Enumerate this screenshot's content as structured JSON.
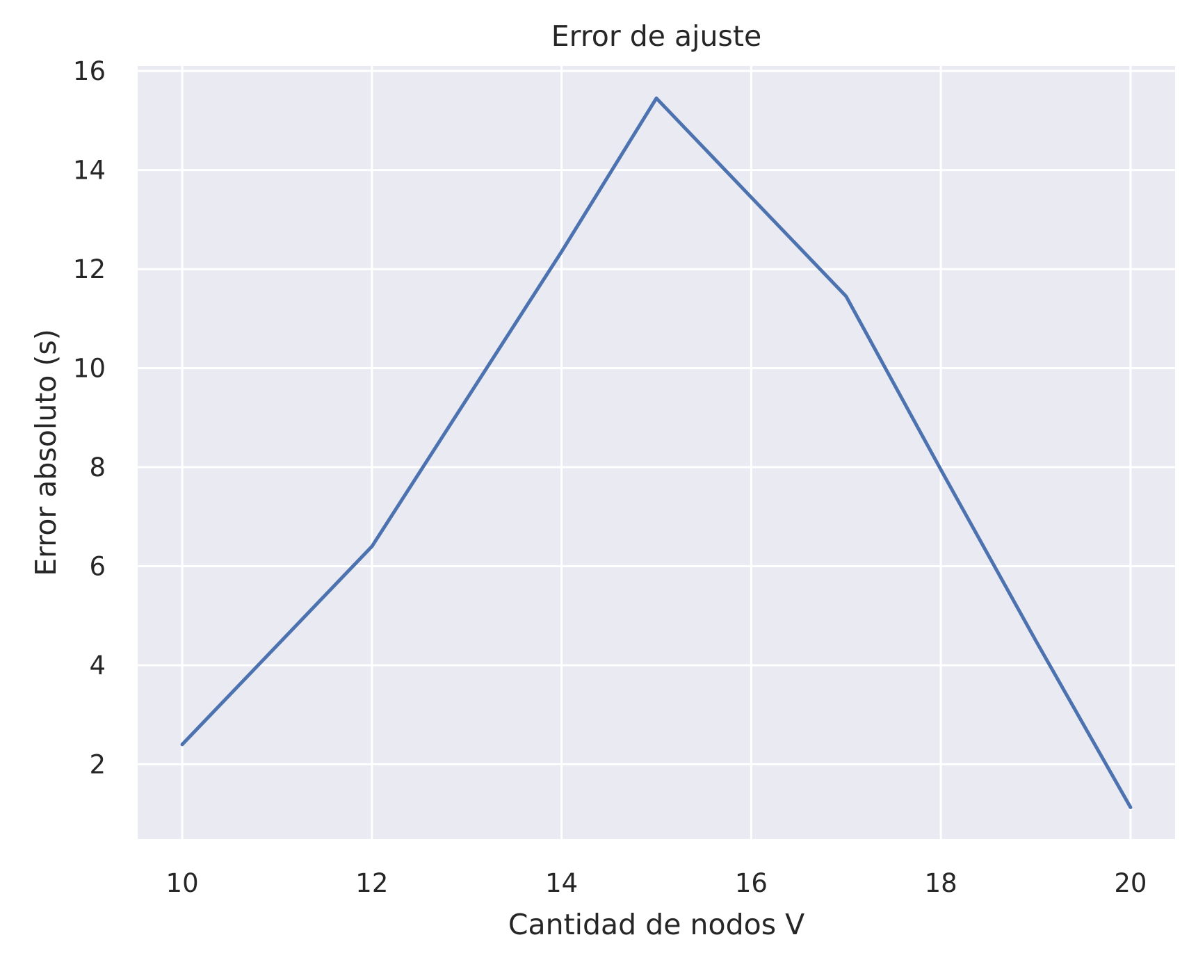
{
  "chart_data": {
    "type": "line",
    "title": "Error de ajuste",
    "xlabel": "Cantidad de nodos V",
    "ylabel": "Error absoluto (s)",
    "xlim": [
      9.53,
      20.47
    ],
    "ylim": [
      0.49,
      16.1
    ],
    "xticks": [
      10,
      12,
      14,
      16,
      18,
      20
    ],
    "yticks": [
      2,
      4,
      6,
      8,
      10,
      12,
      14,
      16
    ],
    "grid": true,
    "series": [
      {
        "name": "Error de ajuste",
        "color": "#4c72b0",
        "x": [
          10,
          12,
          14,
          15,
          16,
          17,
          18,
          19,
          20
        ],
        "y": [
          2.4,
          6.4,
          12.35,
          15.45,
          13.45,
          11.45,
          7.95,
          4.5,
          1.13
        ]
      }
    ]
  },
  "colors": {
    "plot_background": "#eaeaf2",
    "grid": "#ffffff",
    "text": "#262626"
  }
}
